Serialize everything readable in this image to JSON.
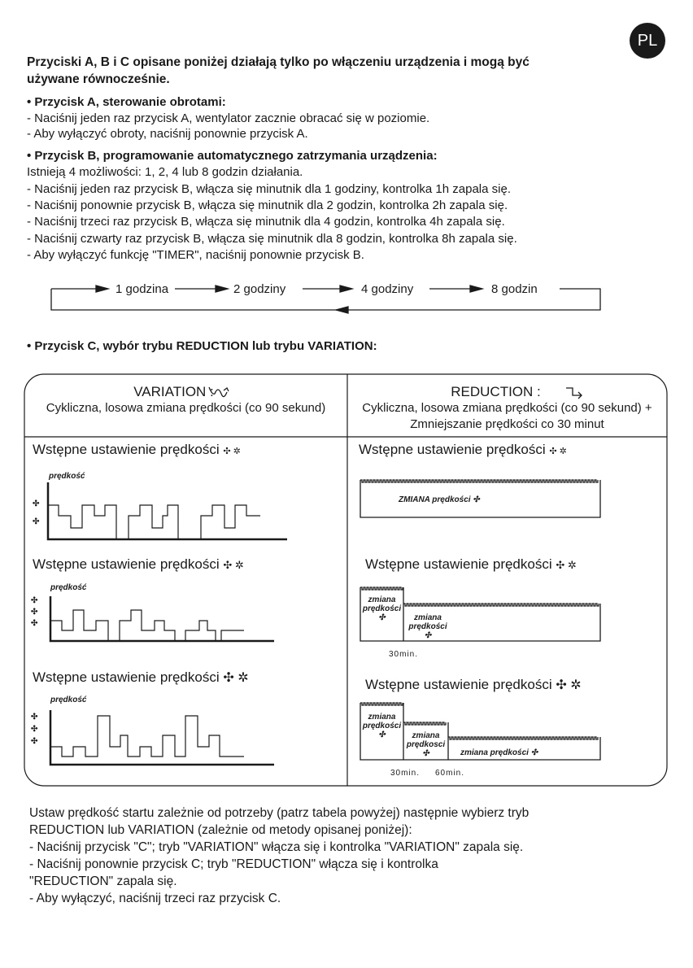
{
  "badge": "PL",
  "intro": [
    "Przyciski A, B i C opisane poniżej działają tylko po włączeniu urządzenia i mogą być",
    "używane równocześnie."
  ],
  "section_a": {
    "heading": "• Przycisk A, sterowanie obrotami:",
    "lines": [
      "- Naciśnij jeden raz przycisk A, wentylator zacznie obracać się w poziomie.",
      "- Aby wyłączyć obroty, naciśnij ponownie przycisk A."
    ]
  },
  "section_b": {
    "heading": "• Przycisk B, programowanie automatycznego zatrzymania urządzenia:",
    "lines": [
      "Istnieją 4 możliwości: 1, 2, 4 lub 8 godzin działania.",
      "- Naciśnij jeden raz przycisk B, włącza się minutnik dla 1 godziny, kontrolka 1h zapala się.",
      "- Naciśnij ponownie przycisk B, włącza się minutnik dla 2 godzin, kontrolka 2h zapala się.",
      "- Naciśnij trzeci raz przycisk B, włącza się minutnik dla 4 godzin, kontrolka 4h zapala się.",
      "- Naciśnij czwarty raz przycisk B, włącza się minutnik dla 8 godzin, kontrolka 8h zapala się.",
      "- Aby wyłączyć funkcję \"TIMER\", naciśnij ponownie przycisk B."
    ]
  },
  "timer_cycle": [
    "1 godzina",
    "2 godziny",
    "4 godziny",
    "8 godzin"
  ],
  "section_c": {
    "heading": "• Przycisk C, wybór trybu REDUCTION lub trybu VARIATION:"
  },
  "table": {
    "variation": {
      "title": "VARIATION :",
      "desc": "Cykliczna, losowa zmiana prędkości (co 90 sekund)"
    },
    "reduction": {
      "title": "REDUCTION :",
      "desc1": "Cykliczna, losowa zmiana prędkości (co 90 sekund) +",
      "desc2": "Zmniejszanie prędkości co 30 minut"
    },
    "preset_label": "Wstępne ustawienie prędkości",
    "axis_label": "prędkość",
    "change_upper": "ZMIANA prędkości",
    "change": "zmiana",
    "speed": "prędkości",
    "speed_alt": "prędkosci",
    "change_full": "zmiana prędkości",
    "t30": "30min.",
    "t60": "60min."
  },
  "outro": [
    "Ustaw prędkość startu zależnie od potrzeby (patrz tabela powyżej) następnie wybierz tryb",
    "REDUCTION lub VARIATION (zależnie od metody opisanej poniżej):",
    "- Naciśnij przycisk \"C\"; tryb \"VARIATION\" włącza się i kontrolka \"VARIATION\" zapala się.",
    "- Naciśnij ponownie przycisk C; tryb \"REDUCTION\" włącza się i kontrolka",
    "\"REDUCTION\" zapala się.",
    "- Aby wyłączyć, naciśnij trzeci raz przycisk C."
  ]
}
